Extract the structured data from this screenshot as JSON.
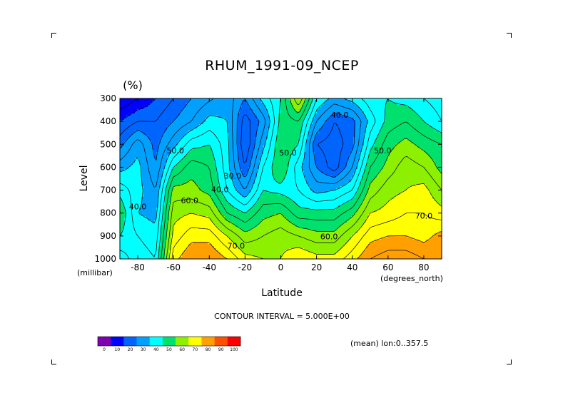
{
  "chart_data": {
    "type": "heatmap",
    "title": "RHUM_1991-09_NCEP",
    "units": "(%)",
    "xlabel": "Latitude",
    "x_units": "(degrees_north)",
    "ylabel": "Level",
    "y_units": "(millibar)",
    "contour_interval_text": "CONTOUR INTERVAL = 5.000E+00",
    "averaging_text": "(mean) lon:0..357.5",
    "x_ticks": [
      -80,
      -60,
      -40,
      -20,
      0,
      20,
      40,
      60,
      80
    ],
    "x_tick_labels": [
      "-80",
      "-60",
      "-40",
      "-20",
      "0",
      "20",
      "40",
      "60",
      "80"
    ],
    "xlim": [
      -90,
      90
    ],
    "y_ticks": [
      300,
      400,
      500,
      600,
      700,
      800,
      900,
      1000
    ],
    "y_tick_labels": [
      "300",
      "400",
      "500",
      "600",
      "700",
      "800",
      "900",
      "1000"
    ],
    "ylim": [
      1000,
      300
    ],
    "x": [
      -90,
      -80,
      -70,
      -60,
      -50,
      -40,
      -30,
      -20,
      -10,
      0,
      10,
      20,
      30,
      40,
      50,
      60,
      70,
      80,
      90
    ],
    "y": [
      300,
      400,
      500,
      600,
      700,
      800,
      900,
      1000
    ],
    "z": [
      [
        10,
        15,
        20,
        25,
        30,
        34,
        38,
        30,
        42,
        50,
        70,
        45,
        38,
        42,
        48,
        50,
        48,
        45,
        42
      ],
      [
        20,
        25,
        25,
        30,
        35,
        42,
        40,
        22,
        32,
        52,
        55,
        35,
        25,
        28,
        42,
        52,
        55,
        50,
        45
      ],
      [
        28,
        38,
        28,
        38,
        48,
        50,
        42,
        20,
        38,
        55,
        50,
        25,
        22,
        28,
        48,
        58,
        62,
        58,
        55
      ],
      [
        38,
        42,
        30,
        50,
        58,
        55,
        42,
        25,
        45,
        55,
        42,
        30,
        22,
        35,
        55,
        62,
        68,
        65,
        58
      ],
      [
        48,
        42,
        35,
        62,
        62,
        58,
        45,
        35,
        50,
        48,
        45,
        38,
        40,
        45,
        62,
        68,
        70,
        72,
        65
      ],
      [
        55,
        40,
        38,
        68,
        70,
        68,
        55,
        50,
        58,
        60,
        52,
        52,
        52,
        58,
        70,
        72,
        75,
        75,
        72
      ],
      [
        50,
        45,
        42,
        72,
        78,
        78,
        70,
        62,
        65,
        68,
        65,
        62,
        62,
        70,
        78,
        80,
        80,
        78,
        82
      ],
      [
        42,
        48,
        45,
        78,
        85,
        85,
        80,
        72,
        70,
        70,
        75,
        72,
        72,
        78,
        85,
        88,
        88,
        85,
        85
      ]
    ],
    "contour_labels": [
      {
        "text": "40.0",
        "x": -80,
        "y": 775
      },
      {
        "text": "50.0",
        "x": -59,
        "y": 530
      },
      {
        "text": "60.0",
        "x": -51,
        "y": 748
      },
      {
        "text": "30.0",
        "x": -27,
        "y": 640
      },
      {
        "text": "40.0",
        "x": -34,
        "y": 700
      },
      {
        "text": "70.0",
        "x": -25,
        "y": 945
      },
      {
        "text": "50.0",
        "x": 4,
        "y": 540
      },
      {
        "text": "40.0",
        "x": 33,
        "y": 375
      },
      {
        "text": "60.0",
        "x": 27,
        "y": 905
      },
      {
        "text": "50.0",
        "x": 57,
        "y": 530
      },
      {
        "text": "70.0",
        "x": 80,
        "y": 815
      }
    ],
    "colorbar": {
      "boundaries": [
        0,
        10,
        20,
        30,
        40,
        50,
        60,
        70,
        80,
        90,
        100
      ],
      "labels": [
        "0",
        "10",
        "20",
        "30",
        "40",
        "50",
        "60",
        "70",
        "80",
        "90",
        "100"
      ],
      "colors": [
        "#7f00b2",
        "#0000ff",
        "#0064ff",
        "#00a0ff",
        "#00ffff",
        "#00e06c",
        "#8cf000",
        "#ffff00",
        "#ffa000",
        "#ff5000",
        "#ff0000"
      ]
    }
  }
}
